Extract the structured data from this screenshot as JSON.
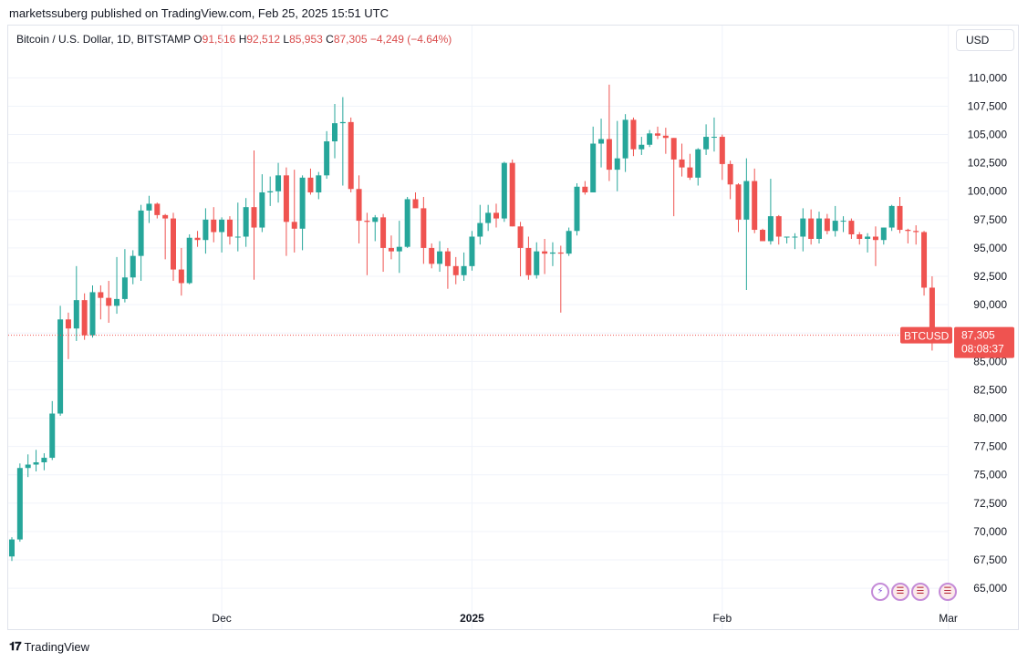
{
  "header": {
    "published": "marketssuberg published on TradingView.com, Feb 25, 2025 15:51 UTC"
  },
  "legend": {
    "symbol": "Bitcoin / U.S. Dollar, 1D, BITSTAMP",
    "open_key": "O",
    "open": "91,516",
    "high_key": "H",
    "high": "92,512",
    "low_key": "L",
    "low": "85,953",
    "close_key": "C",
    "close": "87,305",
    "change": "−4,249 (−4.64%)"
  },
  "currency_button": "USD",
  "price_label": {
    "ticker": "BTCUSD",
    "price": "87,305",
    "countdown": "08:08:37"
  },
  "footer": {
    "logo_text": "TradingView"
  },
  "events": [
    {
      "icon": "lightning-icon"
    },
    {
      "icon": "us-flag-icon"
    },
    {
      "icon": "us-flag-icon"
    },
    {
      "icon": "us-flag-icon"
    }
  ],
  "colors": {
    "up": "#26a69a",
    "down": "#ef5350",
    "grid": "#f0f3fa"
  },
  "chart_data": {
    "type": "candlestick",
    "title": "Bitcoin / U.S. Dollar, 1D, BITSTAMP",
    "y_ticks": [
      65000,
      67500,
      70000,
      72500,
      75000,
      77500,
      80000,
      82500,
      85000,
      87500,
      90000,
      92500,
      95000,
      97500,
      100000,
      102500,
      105000,
      107500,
      110000
    ],
    "y_tick_labels": [
      "65,000",
      "67,500",
      "70,000",
      "72,500",
      "75,000",
      "77,500",
      "80,000",
      "82,500",
      "85,000",
      "87,500",
      "90,000",
      "92,500",
      "95,000",
      "97,500",
      "100,000",
      "102,500",
      "105,000",
      "107,500",
      "110,000"
    ],
    "ylim": [
      63800,
      112200
    ],
    "x_labels": [
      {
        "label": "Dec",
        "date": "2024-12-01",
        "bold": false
      },
      {
        "label": "2025",
        "date": "2025-01-01",
        "bold": true
      },
      {
        "label": "Feb",
        "date": "2025-02-01",
        "bold": false
      },
      {
        "label": "Mar",
        "date": "2025-03-01",
        "bold": false
      }
    ],
    "first_date": "2024-11-05",
    "last_price": 87305,
    "candles": [
      [
        67800,
        69500,
        67400,
        69300
      ],
      [
        69300,
        76000,
        69100,
        75600
      ],
      [
        75600,
        76800,
        74800,
        75900
      ],
      [
        75900,
        77200,
        75300,
        76100
      ],
      [
        76100,
        76900,
        75400,
        76500
      ],
      [
        76500,
        81500,
        76300,
        80400
      ],
      [
        80400,
        89900,
        80200,
        88700
      ],
      [
        88700,
        89300,
        85200,
        87900
      ],
      [
        87900,
        93400,
        86800,
        90400
      ],
      [
        90400,
        91000,
        86900,
        87300
      ],
      [
        87300,
        91700,
        87100,
        91100
      ],
      [
        91100,
        91700,
        88700,
        90600
      ],
      [
        90600,
        92100,
        88400,
        89900
      ],
      [
        89900,
        94200,
        89200,
        90500
      ],
      [
        90500,
        94900,
        90200,
        92400
      ],
      [
        92400,
        94800,
        91800,
        94300
      ],
      [
        94300,
        98800,
        92100,
        98300
      ],
      [
        98300,
        99600,
        97200,
        98900
      ],
      [
        98900,
        99000,
        97600,
        97900
      ],
      [
        97900,
        98000,
        94000,
        97600
      ],
      [
        97600,
        98100,
        92100,
        93100
      ],
      [
        93100,
        95000,
        90800,
        91900
      ],
      [
        91900,
        96200,
        91800,
        95900
      ],
      [
        95900,
        96500,
        95100,
        95700
      ],
      [
        95700,
        98500,
        94500,
        97500
      ],
      [
        97500,
        98600,
        95500,
        96400
      ],
      [
        96400,
        97700,
        94600,
        97500
      ],
      [
        97500,
        97800,
        95300,
        96000
      ],
      [
        96000,
        99000,
        94700,
        96000
      ],
      [
        96000,
        99400,
        95100,
        98600
      ],
      [
        98600,
        103600,
        92200,
        96800
      ],
      [
        96800,
        101500,
        96400,
        99900
      ],
      [
        99900,
        101300,
        98700,
        100000
      ],
      [
        100000,
        102500,
        99000,
        101400
      ],
      [
        101400,
        102100,
        94300,
        97300
      ],
      [
        97300,
        101900,
        94600,
        96700
      ],
      [
        96700,
        101400,
        94800,
        101200
      ],
      [
        101200,
        102000,
        99700,
        99900
      ],
      [
        99900,
        101700,
        99300,
        101400
      ],
      [
        101400,
        105300,
        101100,
        104400
      ],
      [
        104400,
        107700,
        102900,
        106000
      ],
      [
        106000,
        108300,
        100500,
        106100
      ],
      [
        106100,
        106500,
        99900,
        100200
      ],
      [
        100200,
        101400,
        95400,
        97400
      ],
      [
        97400,
        98100,
        92600,
        97300
      ],
      [
        97300,
        97900,
        95600,
        97700
      ],
      [
        97700,
        98000,
        92900,
        95000
      ],
      [
        95000,
        96100,
        94000,
        94700
      ],
      [
        94700,
        97400,
        92800,
        95100
      ],
      [
        95100,
        99500,
        95000,
        99300
      ],
      [
        99300,
        99900,
        98600,
        98500
      ],
      [
        98500,
        99500,
        93600,
        95000
      ],
      [
        95000,
        95400,
        93200,
        93600
      ],
      [
        93600,
        95600,
        92900,
        94700
      ],
      [
        94700,
        95000,
        91400,
        93400
      ],
      [
        93400,
        94200,
        91800,
        92600
      ],
      [
        92600,
        94600,
        92100,
        93400
      ],
      [
        93400,
        96500,
        93000,
        96000
      ],
      [
        96000,
        98800,
        95300,
        97200
      ],
      [
        97200,
        98800,
        96500,
        98100
      ],
      [
        98100,
        98900,
        96800,
        97600
      ],
      [
        97600,
        102600,
        97300,
        102500
      ],
      [
        102500,
        102800,
        96900,
        96900
      ],
      [
        96900,
        97300,
        92500,
        95000
      ],
      [
        95000,
        96000,
        92200,
        92600
      ],
      [
        92600,
        95500,
        92300,
        94700
      ],
      [
        94700,
        95800,
        92700,
        94500
      ],
      [
        94500,
        95500,
        93400,
        94600
      ],
      [
        94600,
        95200,
        89300,
        94500
      ],
      [
        94500,
        96800,
        94300,
        96500
      ],
      [
        96500,
        100700,
        96100,
        100400
      ],
      [
        100400,
        100900,
        99700,
        99900
      ],
      [
        99900,
        105700,
        99900,
        104200
      ],
      [
        104200,
        106400,
        102100,
        104600
      ],
      [
        104600,
        109400,
        100900,
        101900
      ],
      [
        101900,
        106200,
        100000,
        102900
      ],
      [
        102900,
        106800,
        101700,
        106300
      ],
      [
        106300,
        106500,
        103100,
        103700
      ],
      [
        103700,
        104800,
        103200,
        104100
      ],
      [
        104100,
        105400,
        103900,
        105100
      ],
      [
        105100,
        105700,
        104600,
        104900
      ],
      [
        104900,
        105600,
        103300,
        104700
      ],
      [
        104700,
        104700,
        97800,
        102800
      ],
      [
        102800,
        104200,
        101300,
        102100
      ],
      [
        102100,
        103300,
        101000,
        101200
      ],
      [
        101200,
        103800,
        100500,
        103700
      ],
      [
        103700,
        105900,
        103200,
        104800
      ],
      [
        104800,
        106500,
        103500,
        104800
      ],
      [
        104800,
        105000,
        101000,
        102400
      ],
      [
        102400,
        102700,
        99300,
        100600
      ],
      [
        100600,
        100700,
        96400,
        97500
      ],
      [
        97500,
        102900,
        91300,
        100900
      ],
      [
        100900,
        102000,
        96300,
        96600
      ],
      [
        96600,
        96700,
        96000,
        95600
      ],
      [
        95600,
        101100,
        95300,
        97800
      ],
      [
        97800,
        97900,
        95300,
        96000
      ],
      [
        96000,
        96000,
        95400,
        96000
      ],
      [
        96000,
        96300,
        94900,
        96000
      ],
      [
        96000,
        98500,
        94700,
        97600
      ],
      [
        97600,
        98400,
        95300,
        95800
      ],
      [
        95800,
        98200,
        95400,
        97600
      ],
      [
        97600,
        98000,
        96200,
        96500
      ],
      [
        96500,
        98700,
        96000,
        97400
      ],
      [
        97400,
        97800,
        96400,
        97400
      ],
      [
        97400,
        97600,
        95800,
        96200
      ],
      [
        96200,
        96400,
        95300,
        95800
      ],
      [
        95800,
        96300,
        94600,
        96000
      ],
      [
        96000,
        96900,
        93400,
        95700
      ],
      [
        95700,
        96800,
        95300,
        96800
      ],
      [
        96800,
        98800,
        96500,
        98700
      ],
      [
        98700,
        99500,
        96300,
        96600
      ],
      [
        96600,
        96700,
        95400,
        96500
      ],
      [
        96500,
        97000,
        95300,
        96400
      ],
      [
        96400,
        96500,
        90800,
        91500
      ],
      [
        91500,
        92500,
        85953,
        87305
      ]
    ]
  }
}
